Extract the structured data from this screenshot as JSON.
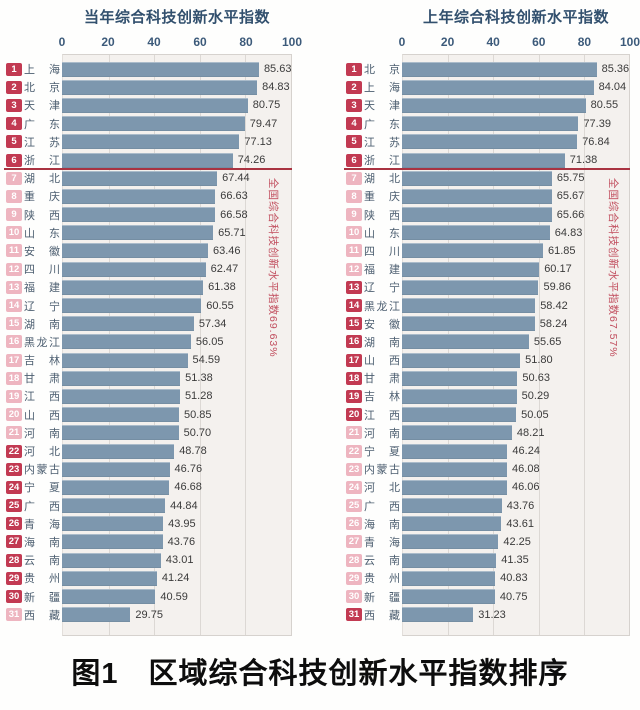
{
  "caption": "图1　区域综合科技创新水平指数排序",
  "colors": {
    "bar": "#7d97ae",
    "plot_background": "#f4f1ee",
    "gridline": "#dcd8d4",
    "badge_dark": "#c23a52",
    "badge_light": "#eeb5c0",
    "average_line": "#a93341",
    "average_note_text": "#c14e5e",
    "title_text": "#32506e",
    "province_text": "#4c5e70",
    "value_text": "#3b3b3b"
  },
  "chart_data": [
    {
      "type": "bar",
      "orientation": "horizontal",
      "title": "当年综合科技创新水平指数",
      "xlabel": "",
      "ylabel": "",
      "xlim": [
        0,
        100
      ],
      "axis_ticks": [
        0,
        20,
        40,
        60,
        80,
        100
      ],
      "grid": true,
      "national_average": {
        "value": 69.63,
        "label": "全国综合科技创新水平指数69.63%"
      },
      "rows": [
        {
          "rank": 1,
          "name": "上海",
          "value": 85.63,
          "value_label": "85.63",
          "badge": "dark"
        },
        {
          "rank": 2,
          "name": "北京",
          "value": 84.83,
          "value_label": "84.83",
          "badge": "dark"
        },
        {
          "rank": 3,
          "name": "天津",
          "value": 80.75,
          "value_label": "80.75",
          "badge": "dark"
        },
        {
          "rank": 4,
          "name": "广东",
          "value": 79.47,
          "value_label": "79.47",
          "badge": "dark"
        },
        {
          "rank": 5,
          "name": "江苏",
          "value": 77.13,
          "value_label": "77.13",
          "badge": "dark"
        },
        {
          "rank": 6,
          "name": "浙江",
          "value": 74.26,
          "value_label": "74.26",
          "badge": "dark"
        },
        {
          "rank": 7,
          "name": "湖北",
          "value": 67.44,
          "value_label": "67.44",
          "badge": "light"
        },
        {
          "rank": 8,
          "name": "重庆",
          "value": 66.63,
          "value_label": "66.63",
          "badge": "light"
        },
        {
          "rank": 9,
          "name": "陕西",
          "value": 66.58,
          "value_label": "66.58",
          "badge": "light"
        },
        {
          "rank": 10,
          "name": "山东",
          "value": 65.71,
          "value_label": "65.71",
          "badge": "light"
        },
        {
          "rank": 11,
          "name": "安徽",
          "value": 63.46,
          "value_label": "63.46",
          "badge": "light"
        },
        {
          "rank": 12,
          "name": "四川",
          "value": 62.47,
          "value_label": "62.47",
          "badge": "light"
        },
        {
          "rank": 13,
          "name": "福建",
          "value": 61.38,
          "value_label": "61.38",
          "badge": "light"
        },
        {
          "rank": 14,
          "name": "辽宁",
          "value": 60.55,
          "value_label": "60.55",
          "badge": "light"
        },
        {
          "rank": 15,
          "name": "湖南",
          "value": 57.34,
          "value_label": "57.34",
          "badge": "light"
        },
        {
          "rank": 16,
          "name": "黑龙江",
          "value": 56.05,
          "value_label": "56.05",
          "badge": "light"
        },
        {
          "rank": 17,
          "name": "吉林",
          "value": 54.59,
          "value_label": "54.59",
          "badge": "light"
        },
        {
          "rank": 18,
          "name": "甘肃",
          "value": 51.38,
          "value_label": "51.38",
          "badge": "light"
        },
        {
          "rank": 19,
          "name": "江西",
          "value": 51.28,
          "value_label": "51.28",
          "badge": "light"
        },
        {
          "rank": 20,
          "name": "山西",
          "value": 50.85,
          "value_label": "50.85",
          "badge": "light"
        },
        {
          "rank": 21,
          "name": "河南",
          "value": 50.7,
          "value_label": "50.70",
          "badge": "light"
        },
        {
          "rank": 22,
          "name": "河北",
          "value": 48.78,
          "value_label": "48.78",
          "badge": "dark"
        },
        {
          "rank": 23,
          "name": "内蒙古",
          "value": 46.76,
          "value_label": "46.76",
          "badge": "dark"
        },
        {
          "rank": 24,
          "name": "宁夏",
          "value": 46.68,
          "value_label": "46.68",
          "badge": "dark"
        },
        {
          "rank": 25,
          "name": "广西",
          "value": 44.84,
          "value_label": "44.84",
          "badge": "dark"
        },
        {
          "rank": 26,
          "name": "青海",
          "value": 43.95,
          "value_label": "43.95",
          "badge": "dark"
        },
        {
          "rank": 27,
          "name": "海南",
          "value": 43.76,
          "value_label": "43.76",
          "badge": "dark"
        },
        {
          "rank": 28,
          "name": "云南",
          "value": 43.01,
          "value_label": "43.01",
          "badge": "dark"
        },
        {
          "rank": 29,
          "name": "贵州",
          "value": 41.24,
          "value_label": "41.24",
          "badge": "dark"
        },
        {
          "rank": 30,
          "name": "新疆",
          "value": 40.59,
          "value_label": "40.59",
          "badge": "dark"
        },
        {
          "rank": 31,
          "name": "西藏",
          "value": 29.75,
          "value_label": "29.75",
          "badge": "light"
        }
      ]
    },
    {
      "type": "bar",
      "orientation": "horizontal",
      "title": "上年综合科技创新水平指数",
      "xlabel": "",
      "ylabel": "",
      "xlim": [
        0,
        100
      ],
      "axis_ticks": [
        0,
        20,
        40,
        60,
        80,
        100
      ],
      "grid": true,
      "national_average": {
        "value": 67.57,
        "label": "全国综合科技创新水平指数67.57%"
      },
      "rows": [
        {
          "rank": 1,
          "name": "北京",
          "value": 85.36,
          "value_label": "85.36",
          "badge": "dark"
        },
        {
          "rank": 2,
          "name": "上海",
          "value": 84.04,
          "value_label": "84.04",
          "badge": "dark"
        },
        {
          "rank": 3,
          "name": "天津",
          "value": 80.55,
          "value_label": "80.55",
          "badge": "dark"
        },
        {
          "rank": 4,
          "name": "广东",
          "value": 77.39,
          "value_label": "77.39",
          "badge": "dark"
        },
        {
          "rank": 5,
          "name": "江苏",
          "value": 76.84,
          "value_label": "76.84",
          "badge": "dark"
        },
        {
          "rank": 6,
          "name": "浙江",
          "value": 71.38,
          "value_label": "71.38",
          "badge": "dark"
        },
        {
          "rank": 7,
          "name": "湖北",
          "value": 65.75,
          "value_label": "65.75",
          "badge": "light"
        },
        {
          "rank": 8,
          "name": "重庆",
          "value": 65.67,
          "value_label": "65.67",
          "badge": "light"
        },
        {
          "rank": 9,
          "name": "陕西",
          "value": 65.66,
          "value_label": "65.66",
          "badge": "light"
        },
        {
          "rank": 10,
          "name": "山东",
          "value": 64.83,
          "value_label": "64.83",
          "badge": "light"
        },
        {
          "rank": 11,
          "name": "四川",
          "value": 61.85,
          "value_label": "61.85",
          "badge": "light"
        },
        {
          "rank": 12,
          "name": "福建",
          "value": 60.17,
          "value_label": "60.17",
          "badge": "light"
        },
        {
          "rank": 13,
          "name": "辽宁",
          "value": 59.86,
          "value_label": "59.86",
          "badge": "dark"
        },
        {
          "rank": 14,
          "name": "黑龙江",
          "value": 58.42,
          "value_label": "58.42",
          "badge": "dark"
        },
        {
          "rank": 15,
          "name": "安徽",
          "value": 58.24,
          "value_label": "58.24",
          "badge": "dark"
        },
        {
          "rank": 16,
          "name": "湖南",
          "value": 55.65,
          "value_label": "55.65",
          "badge": "dark"
        },
        {
          "rank": 17,
          "name": "山西",
          "value": 51.8,
          "value_label": "51.80",
          "badge": "dark"
        },
        {
          "rank": 18,
          "name": "甘肃",
          "value": 50.63,
          "value_label": "50.63",
          "badge": "dark"
        },
        {
          "rank": 19,
          "name": "吉林",
          "value": 50.29,
          "value_label": "50.29",
          "badge": "dark"
        },
        {
          "rank": 20,
          "name": "江西",
          "value": 50.05,
          "value_label": "50.05",
          "badge": "dark"
        },
        {
          "rank": 21,
          "name": "河南",
          "value": 48.21,
          "value_label": "48.21",
          "badge": "light"
        },
        {
          "rank": 22,
          "name": "宁夏",
          "value": 46.24,
          "value_label": "46.24",
          "badge": "light"
        },
        {
          "rank": 23,
          "name": "内蒙古",
          "value": 46.08,
          "value_label": "46.08",
          "badge": "light"
        },
        {
          "rank": 24,
          "name": "河北",
          "value": 46.06,
          "value_label": "46.06",
          "badge": "light"
        },
        {
          "rank": 25,
          "name": "广西",
          "value": 43.76,
          "value_label": "43.76",
          "badge": "light"
        },
        {
          "rank": 26,
          "name": "海南",
          "value": 43.61,
          "value_label": "43.61",
          "badge": "light"
        },
        {
          "rank": 27,
          "name": "青海",
          "value": 42.25,
          "value_label": "42.25",
          "badge": "light"
        },
        {
          "rank": 28,
          "name": "云南",
          "value": 41.35,
          "value_label": "41.35",
          "badge": "light"
        },
        {
          "rank": 29,
          "name": "贵州",
          "value": 40.83,
          "value_label": "40.83",
          "badge": "light"
        },
        {
          "rank": 30,
          "name": "新疆",
          "value": 40.75,
          "value_label": "40.75",
          "badge": "light"
        },
        {
          "rank": 31,
          "name": "西藏",
          "value": 31.23,
          "value_label": "31.23",
          "badge": "dark"
        }
      ]
    }
  ]
}
